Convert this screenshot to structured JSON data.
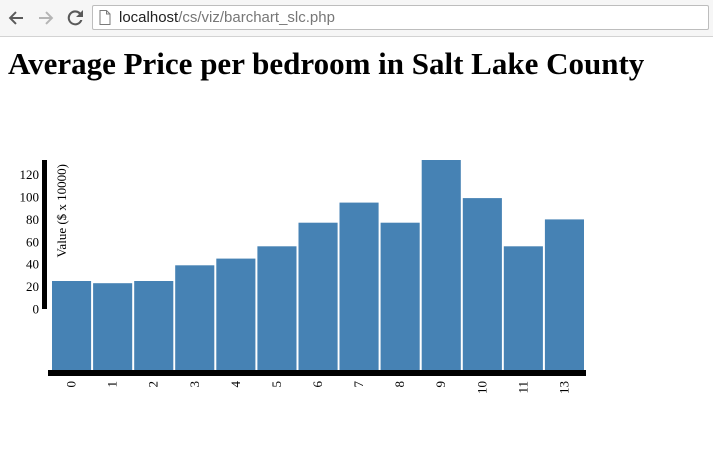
{
  "browser": {
    "url_host": "localhost",
    "url_path": "/cs/viz/barchart_slc.php"
  },
  "page": {
    "title": "Average Price per bedroom in Salt Lake County"
  },
  "chart_data": {
    "type": "bar",
    "title": "Average Price per bedroom in Salt Lake County",
    "categories": [
      "0",
      "1",
      "2",
      "3",
      "4",
      "5",
      "6",
      "7",
      "8",
      "9",
      "10",
      "11",
      "13"
    ],
    "values": [
      25,
      23,
      25,
      39,
      45,
      56,
      77,
      95,
      77,
      133,
      99,
      56,
      80
    ],
    "ylabel": "Value ($ x 10000)",
    "xlabel": "",
    "yticks": [
      0,
      20,
      40,
      60,
      80,
      100,
      120
    ],
    "ylim": [
      0,
      133
    ],
    "bar_color": "#4682b4",
    "axis_color": "#000000",
    "grid": false
  }
}
